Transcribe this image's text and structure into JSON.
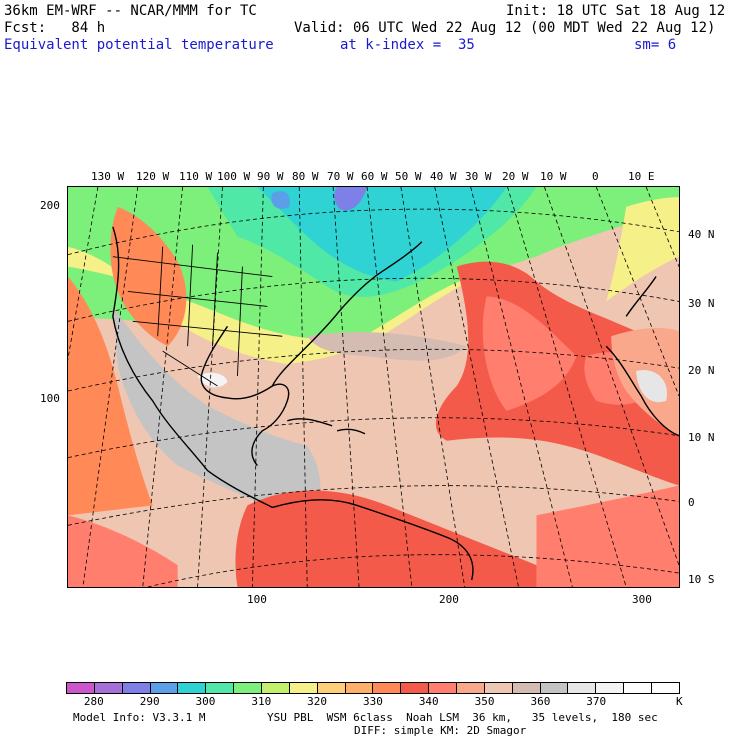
{
  "header": {
    "model_line": "36km EM-WRF -- NCAR/MMM for TC",
    "forecast_line": "Fcst:   84 h",
    "init": "Init: 18 UTC Sat 18 Aug 12",
    "valid": "Valid: 06 UTC Wed 22 Aug 12 (00 MDT Wed 22 Aug 12)",
    "field": "Equivalent potential temperature",
    "level": "at k-index =  35",
    "smoothing": "sm= 6"
  },
  "axes": {
    "top_longitudes": [
      "130 W",
      "120 W",
      "110 W",
      "100 W",
      "90 W",
      "80 W",
      "70 W",
      "60 W",
      "50 W",
      "40 W",
      "30 W",
      "20 W",
      "10 W",
      "0",
      "10 E"
    ],
    "right_latitudes": [
      "40 N",
      "30 N",
      "20 N",
      "10 N",
      "0",
      "10 S"
    ],
    "left_grid": [
      "200",
      "100"
    ],
    "bottom_grid": [
      "100",
      "200",
      "300"
    ]
  },
  "colorbar": {
    "colors": [
      "#cc55cc",
      "#a570d8",
      "#7d80e6",
      "#5a9fe8",
      "#2fd3d3",
      "#4fe8a6",
      "#7cf07a",
      "#c2f06a",
      "#f6f088",
      "#ffce78",
      "#ffb068",
      "#ff8a58",
      "#f45a4a",
      "#ff7e6e",
      "#f9a88c",
      "#efc6b2",
      "#d4bcb2",
      "#c4c4c4",
      "#e6e6e6",
      "#f4f4f4",
      "#ffffff",
      "#ffffff"
    ],
    "labels": [
      "280",
      "290",
      "300",
      "310",
      "320",
      "330",
      "340",
      "350",
      "360",
      "370"
    ],
    "unit": "K"
  },
  "footer": {
    "model_info": "Model Info: V3.3.1 M",
    "physics": "YSU PBL  WSM 6class  Noah LSM  36 km,   35 levels,  180 sec",
    "diffusion": "DIFF: simple KM: 2D Smagor"
  }
}
